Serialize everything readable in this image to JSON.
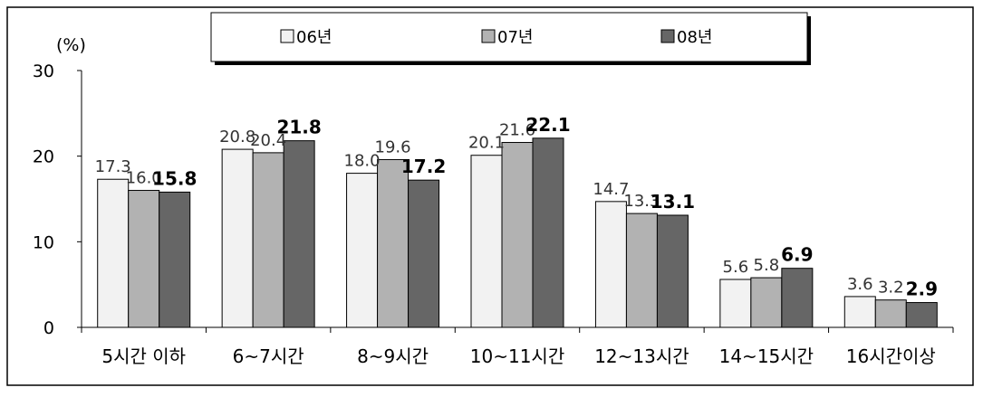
{
  "chart_data": {
    "type": "bar",
    "y_unit": "(%)",
    "categories": [
      "5시간 이하",
      "6~7시간",
      "8~9시간",
      "10~11시간",
      "12~13시간",
      "14~15시간",
      "16시간이상"
    ],
    "series": [
      {
        "name": "06년",
        "values": [
          17.3,
          20.8,
          18.0,
          20.1,
          14.7,
          5.6,
          3.6
        ],
        "color": "#f2f2f2"
      },
      {
        "name": "07년",
        "values": [
          16.0,
          20.4,
          19.6,
          21.6,
          13.3,
          5.8,
          3.2
        ],
        "color": "#b2b2b2"
      },
      {
        "name": "08년",
        "values": [
          15.8,
          21.8,
          17.2,
          22.1,
          13.1,
          6.9,
          2.9
        ],
        "color": "#666666"
      }
    ],
    "value_labels": [
      [
        "17.3",
        "20.8",
        "18.0",
        "20.1",
        "14.7",
        "5.6",
        "3.6"
      ],
      [
        "16.0",
        "20.4",
        "19.6",
        "21.6",
        "13.3",
        "5.8",
        "3.2"
      ],
      [
        "15.8",
        "21.8",
        "17.2",
        "22.1",
        "13.1",
        "6.9",
        "2.9"
      ]
    ],
    "ylim": [
      0,
      30
    ],
    "yticks": [
      "0",
      "10",
      "20",
      "30"
    ],
    "grid": false,
    "legend_position": "top-center"
  }
}
